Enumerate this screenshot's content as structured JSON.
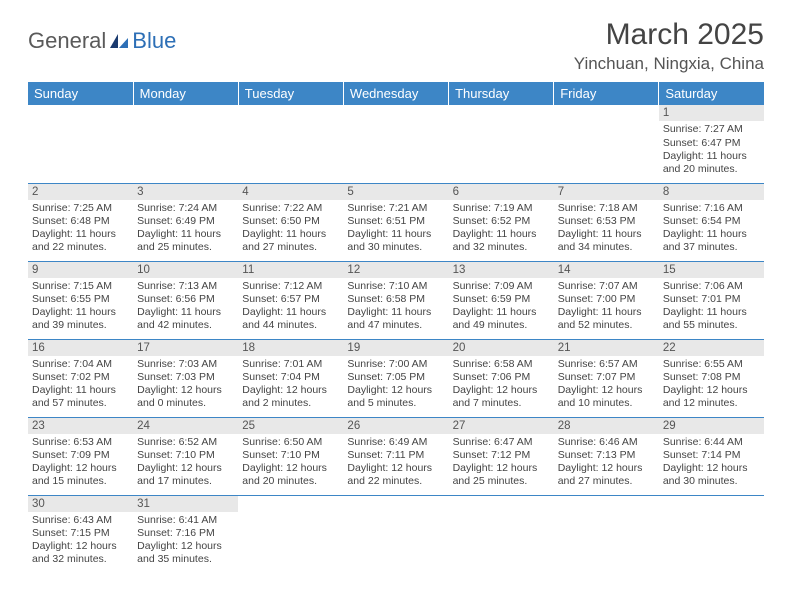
{
  "logo": {
    "text1": "General",
    "text2": "Blue"
  },
  "title": "March 2025",
  "location": "Yinchuan, Ningxia, China",
  "colors": {
    "header_bg": "#3d86c6",
    "daynum_bg": "#e8e8e8",
    "border": "#3d86c6"
  },
  "weekdays": [
    "Sunday",
    "Monday",
    "Tuesday",
    "Wednesday",
    "Thursday",
    "Friday",
    "Saturday"
  ],
  "weeks": [
    [
      {
        "n": "",
        "empty": true
      },
      {
        "n": "",
        "empty": true
      },
      {
        "n": "",
        "empty": true
      },
      {
        "n": "",
        "empty": true
      },
      {
        "n": "",
        "empty": true
      },
      {
        "n": "",
        "empty": true
      },
      {
        "n": "1",
        "sr": "Sunrise: 7:27 AM",
        "ss": "Sunset: 6:47 PM",
        "dl1": "Daylight: 11 hours",
        "dl2": "and 20 minutes."
      }
    ],
    [
      {
        "n": "2",
        "sr": "Sunrise: 7:25 AM",
        "ss": "Sunset: 6:48 PM",
        "dl1": "Daylight: 11 hours",
        "dl2": "and 22 minutes."
      },
      {
        "n": "3",
        "sr": "Sunrise: 7:24 AM",
        "ss": "Sunset: 6:49 PM",
        "dl1": "Daylight: 11 hours",
        "dl2": "and 25 minutes."
      },
      {
        "n": "4",
        "sr": "Sunrise: 7:22 AM",
        "ss": "Sunset: 6:50 PM",
        "dl1": "Daylight: 11 hours",
        "dl2": "and 27 minutes."
      },
      {
        "n": "5",
        "sr": "Sunrise: 7:21 AM",
        "ss": "Sunset: 6:51 PM",
        "dl1": "Daylight: 11 hours",
        "dl2": "and 30 minutes."
      },
      {
        "n": "6",
        "sr": "Sunrise: 7:19 AM",
        "ss": "Sunset: 6:52 PM",
        "dl1": "Daylight: 11 hours",
        "dl2": "and 32 minutes."
      },
      {
        "n": "7",
        "sr": "Sunrise: 7:18 AM",
        "ss": "Sunset: 6:53 PM",
        "dl1": "Daylight: 11 hours",
        "dl2": "and 34 minutes."
      },
      {
        "n": "8",
        "sr": "Sunrise: 7:16 AM",
        "ss": "Sunset: 6:54 PM",
        "dl1": "Daylight: 11 hours",
        "dl2": "and 37 minutes."
      }
    ],
    [
      {
        "n": "9",
        "sr": "Sunrise: 7:15 AM",
        "ss": "Sunset: 6:55 PM",
        "dl1": "Daylight: 11 hours",
        "dl2": "and 39 minutes."
      },
      {
        "n": "10",
        "sr": "Sunrise: 7:13 AM",
        "ss": "Sunset: 6:56 PM",
        "dl1": "Daylight: 11 hours",
        "dl2": "and 42 minutes."
      },
      {
        "n": "11",
        "sr": "Sunrise: 7:12 AM",
        "ss": "Sunset: 6:57 PM",
        "dl1": "Daylight: 11 hours",
        "dl2": "and 44 minutes."
      },
      {
        "n": "12",
        "sr": "Sunrise: 7:10 AM",
        "ss": "Sunset: 6:58 PM",
        "dl1": "Daylight: 11 hours",
        "dl2": "and 47 minutes."
      },
      {
        "n": "13",
        "sr": "Sunrise: 7:09 AM",
        "ss": "Sunset: 6:59 PM",
        "dl1": "Daylight: 11 hours",
        "dl2": "and 49 minutes."
      },
      {
        "n": "14",
        "sr": "Sunrise: 7:07 AM",
        "ss": "Sunset: 7:00 PM",
        "dl1": "Daylight: 11 hours",
        "dl2": "and 52 minutes."
      },
      {
        "n": "15",
        "sr": "Sunrise: 7:06 AM",
        "ss": "Sunset: 7:01 PM",
        "dl1": "Daylight: 11 hours",
        "dl2": "and 55 minutes."
      }
    ],
    [
      {
        "n": "16",
        "sr": "Sunrise: 7:04 AM",
        "ss": "Sunset: 7:02 PM",
        "dl1": "Daylight: 11 hours",
        "dl2": "and 57 minutes."
      },
      {
        "n": "17",
        "sr": "Sunrise: 7:03 AM",
        "ss": "Sunset: 7:03 PM",
        "dl1": "Daylight: 12 hours",
        "dl2": "and 0 minutes."
      },
      {
        "n": "18",
        "sr": "Sunrise: 7:01 AM",
        "ss": "Sunset: 7:04 PM",
        "dl1": "Daylight: 12 hours",
        "dl2": "and 2 minutes."
      },
      {
        "n": "19",
        "sr": "Sunrise: 7:00 AM",
        "ss": "Sunset: 7:05 PM",
        "dl1": "Daylight: 12 hours",
        "dl2": "and 5 minutes."
      },
      {
        "n": "20",
        "sr": "Sunrise: 6:58 AM",
        "ss": "Sunset: 7:06 PM",
        "dl1": "Daylight: 12 hours",
        "dl2": "and 7 minutes."
      },
      {
        "n": "21",
        "sr": "Sunrise: 6:57 AM",
        "ss": "Sunset: 7:07 PM",
        "dl1": "Daylight: 12 hours",
        "dl2": "and 10 minutes."
      },
      {
        "n": "22",
        "sr": "Sunrise: 6:55 AM",
        "ss": "Sunset: 7:08 PM",
        "dl1": "Daylight: 12 hours",
        "dl2": "and 12 minutes."
      }
    ],
    [
      {
        "n": "23",
        "sr": "Sunrise: 6:53 AM",
        "ss": "Sunset: 7:09 PM",
        "dl1": "Daylight: 12 hours",
        "dl2": "and 15 minutes."
      },
      {
        "n": "24",
        "sr": "Sunrise: 6:52 AM",
        "ss": "Sunset: 7:10 PM",
        "dl1": "Daylight: 12 hours",
        "dl2": "and 17 minutes."
      },
      {
        "n": "25",
        "sr": "Sunrise: 6:50 AM",
        "ss": "Sunset: 7:10 PM",
        "dl1": "Daylight: 12 hours",
        "dl2": "and 20 minutes."
      },
      {
        "n": "26",
        "sr": "Sunrise: 6:49 AM",
        "ss": "Sunset: 7:11 PM",
        "dl1": "Daylight: 12 hours",
        "dl2": "and 22 minutes."
      },
      {
        "n": "27",
        "sr": "Sunrise: 6:47 AM",
        "ss": "Sunset: 7:12 PM",
        "dl1": "Daylight: 12 hours",
        "dl2": "and 25 minutes."
      },
      {
        "n": "28",
        "sr": "Sunrise: 6:46 AM",
        "ss": "Sunset: 7:13 PM",
        "dl1": "Daylight: 12 hours",
        "dl2": "and 27 minutes."
      },
      {
        "n": "29",
        "sr": "Sunrise: 6:44 AM",
        "ss": "Sunset: 7:14 PM",
        "dl1": "Daylight: 12 hours",
        "dl2": "and 30 minutes."
      }
    ],
    [
      {
        "n": "30",
        "sr": "Sunrise: 6:43 AM",
        "ss": "Sunset: 7:15 PM",
        "dl1": "Daylight: 12 hours",
        "dl2": "and 32 minutes."
      },
      {
        "n": "31",
        "sr": "Sunrise: 6:41 AM",
        "ss": "Sunset: 7:16 PM",
        "dl1": "Daylight: 12 hours",
        "dl2": "and 35 minutes."
      },
      {
        "n": "",
        "empty": true
      },
      {
        "n": "",
        "empty": true
      },
      {
        "n": "",
        "empty": true
      },
      {
        "n": "",
        "empty": true
      },
      {
        "n": "",
        "empty": true
      }
    ]
  ]
}
